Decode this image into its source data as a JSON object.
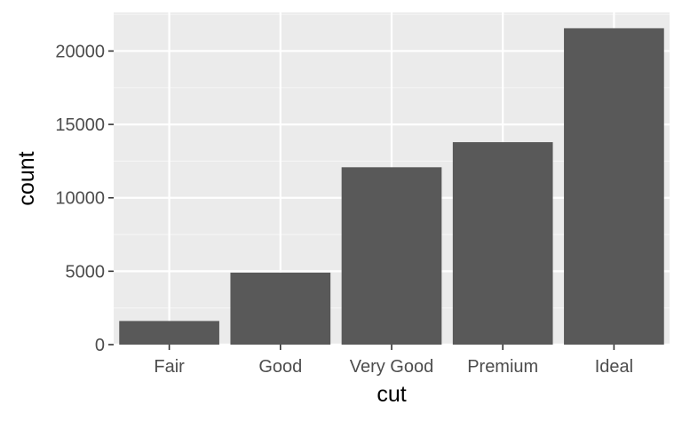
{
  "chart_data": {
    "type": "bar",
    "categories": [
      "Fair",
      "Good",
      "Very Good",
      "Premium",
      "Ideal"
    ],
    "values": [
      1610,
      4906,
      12082,
      13791,
      21551
    ],
    "xlabel": "cut",
    "ylabel": "count",
    "ylim": [
      0,
      22629
    ],
    "yticks": [
      0,
      5000,
      10000,
      15000,
      20000
    ],
    "grid": true,
    "legend": "none",
    "colors": {
      "bar": "#595959",
      "panel": "#ebebeb",
      "grid_major": "#ffffff",
      "grid_minor": "#f5f5f5",
      "tick_text": "#4d4d4d",
      "title_text": "#000000"
    }
  }
}
